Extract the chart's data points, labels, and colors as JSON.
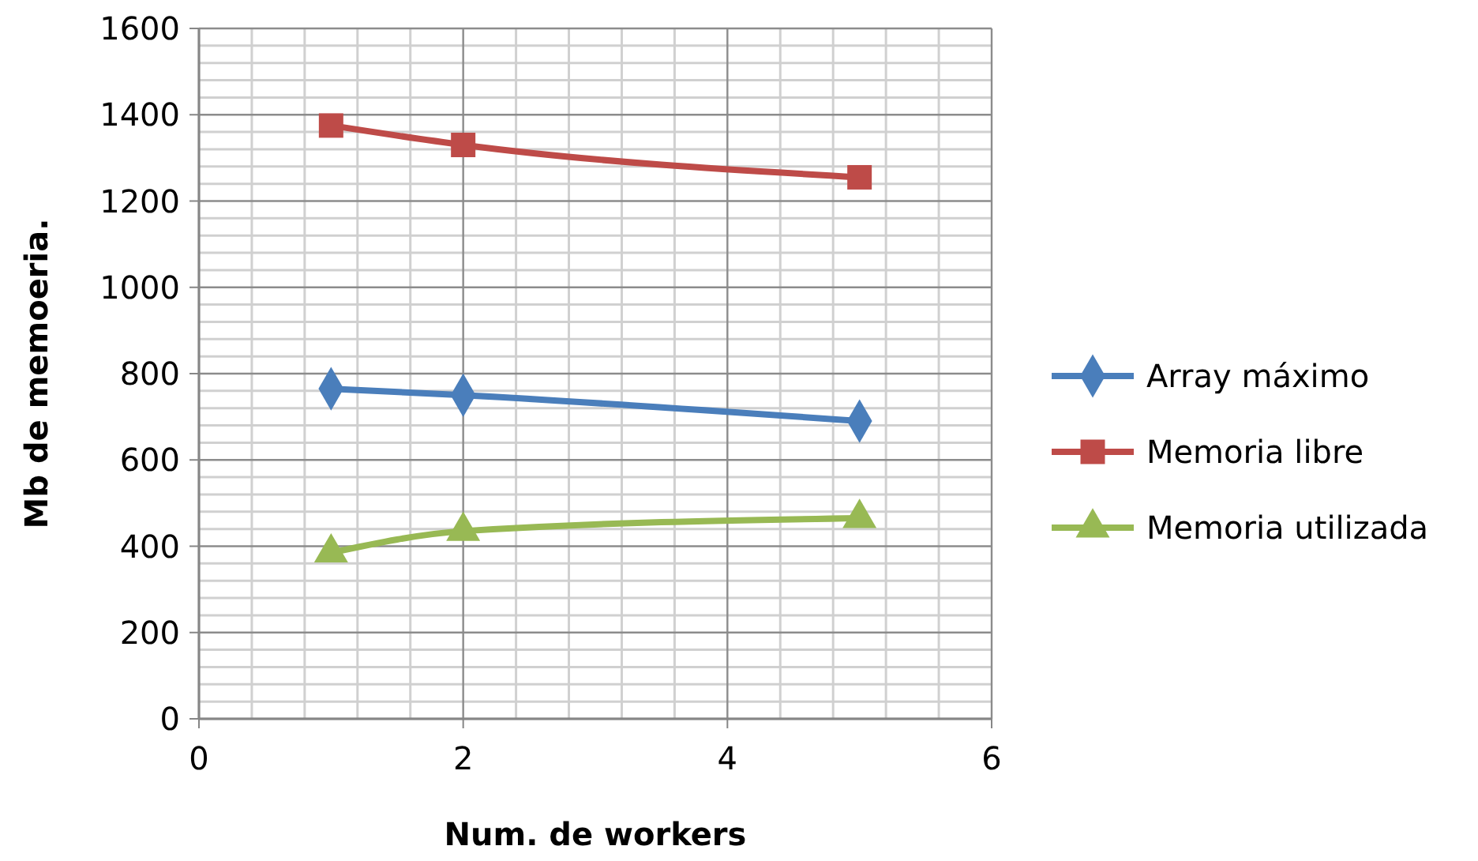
{
  "chart_data": {
    "type": "line",
    "xlabel": "Num. de workers",
    "ylabel": "Mb de memoeria.",
    "x": [
      1,
      2,
      5
    ],
    "series": [
      {
        "name": "Array máximo",
        "color": "#4a7ebb",
        "marker": "diamond",
        "values": [
          765,
          750,
          690
        ]
      },
      {
        "name": "Memoria libre",
        "color": "#be4b48",
        "marker": "square",
        "values": [
          1375,
          1330,
          1255
        ]
      },
      {
        "name": "Memoria utilizada",
        "color": "#98b954",
        "marker": "triangle",
        "values": [
          385,
          435,
          465
        ]
      }
    ],
    "xlim": [
      0,
      6
    ],
    "xticks": [
      0,
      2,
      4,
      6
    ],
    "ylim": [
      0,
      1600
    ],
    "yticks": [
      0,
      200,
      400,
      600,
      800,
      1000,
      1200,
      1400,
      1600
    ],
    "grid": true,
    "legend": "right"
  }
}
